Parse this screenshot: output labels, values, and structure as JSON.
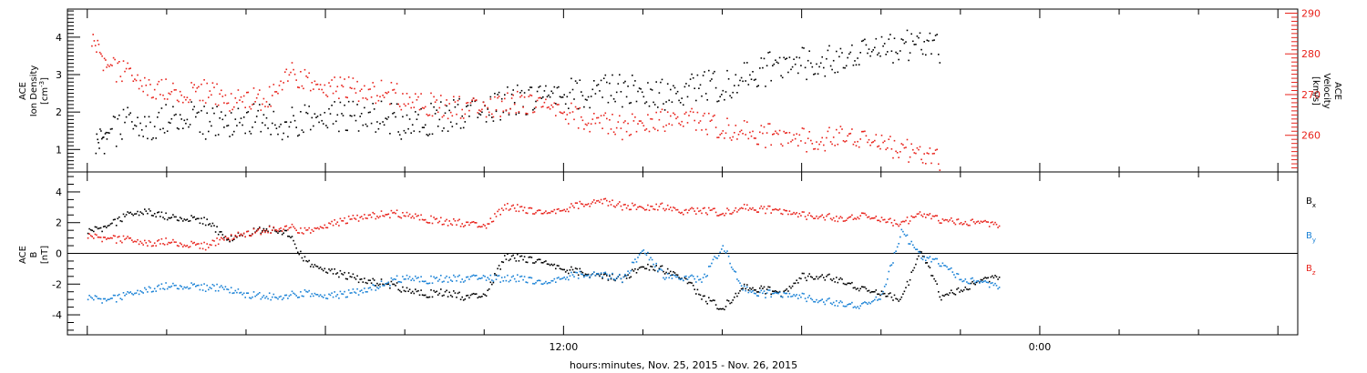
{
  "chart_data": [
    {
      "panel": "top",
      "type": "scatter",
      "left_axis": {
        "label_line1": "ACE",
        "label_line2": "Ion Density",
        "units": "[cm",
        "units_sup": "-3",
        "units_end": "]",
        "ylim": [
          0.4,
          4.75
        ],
        "ticks": [
          {
            "v": 1,
            "label": "1"
          },
          {
            "v": 2,
            "label": "2"
          },
          {
            "v": 3,
            "label": "3"
          },
          {
            "v": 4,
            "label": "4"
          }
        ],
        "color": "#000000"
      },
      "right_axis": {
        "label_line1": "ACE",
        "label_line2": "Velocity",
        "units": "[km/s]",
        "ylim": [
          251,
          291
        ],
        "ticks": [
          {
            "v": 260,
            "label": "260"
          },
          {
            "v": 270,
            "label": "270"
          },
          {
            "v": 280,
            "label": "280"
          },
          {
            "v": 290,
            "label": "290"
          }
        ],
        "color": "#e8221b"
      },
      "series": [
        {
          "axis": "left",
          "color": "#000000",
          "points": [
            [
              0.2,
              1.2
            ],
            [
              0.5,
              1.4
            ],
            [
              1.0,
              1.7
            ],
            [
              1.5,
              1.6
            ],
            [
              2.0,
              1.8
            ],
            [
              2.5,
              1.9
            ],
            [
              3.0,
              1.7
            ],
            [
              3.5,
              1.8
            ],
            [
              4.0,
              1.9
            ],
            [
              4.5,
              1.8
            ],
            [
              5.0,
              1.7
            ],
            [
              5.5,
              1.9
            ],
            [
              6.0,
              1.8
            ],
            [
              6.5,
              1.9
            ],
            [
              7.0,
              1.8
            ],
            [
              7.5,
              1.9
            ],
            [
              8.0,
              1.7
            ],
            [
              8.5,
              1.8
            ],
            [
              9.0,
              1.9
            ],
            [
              9.5,
              2.0
            ],
            [
              10.0,
              2.1
            ],
            [
              10.5,
              2.3
            ],
            [
              11.0,
              2.3
            ],
            [
              11.5,
              2.4
            ],
            [
              12.0,
              2.5
            ],
            [
              12.5,
              2.5
            ],
            [
              13.0,
              2.6
            ],
            [
              13.5,
              2.6
            ],
            [
              14.0,
              2.5
            ],
            [
              14.5,
              2.5
            ],
            [
              15.0,
              2.6
            ],
            [
              15.5,
              2.7
            ],
            [
              16.0,
              2.7
            ],
            [
              16.5,
              2.9
            ],
            [
              17.0,
              3.1
            ],
            [
              17.5,
              3.3
            ],
            [
              18.0,
              3.3
            ],
            [
              18.5,
              3.4
            ],
            [
              19.0,
              3.5
            ],
            [
              19.5,
              3.6
            ],
            [
              20.0,
              3.7
            ],
            [
              20.5,
              3.8
            ],
            [
              21.0,
              3.8
            ],
            [
              21.5,
              3.7
            ]
          ]
        },
        {
          "axis": "right",
          "color": "#e8221b",
          "points": [
            [
              0.1,
              284
            ],
            [
              0.5,
              277
            ],
            [
              1.0,
              275
            ],
            [
              1.5,
              272
            ],
            [
              2.0,
              271
            ],
            [
              2.5,
              270
            ],
            [
              3.0,
              271
            ],
            [
              3.5,
              269
            ],
            [
              4.0,
              270
            ],
            [
              4.5,
              268
            ],
            [
              5.0,
              276
            ],
            [
              5.5,
              274
            ],
            [
              6.0,
              271
            ],
            [
              6.5,
              272
            ],
            [
              7.0,
              270
            ],
            [
              7.5,
              271
            ],
            [
              8.0,
              269
            ],
            [
              8.5,
              268
            ],
            [
              9.0,
              267
            ],
            [
              9.5,
              267
            ],
            [
              10.0,
              267
            ],
            [
              10.5,
              268
            ],
            [
              11.0,
              268
            ],
            [
              11.5,
              267
            ],
            [
              12.0,
              266
            ],
            [
              12.5,
              264
            ],
            [
              13.0,
              263
            ],
            [
              13.5,
              262
            ],
            [
              14.0,
              263
            ],
            [
              14.5,
              264
            ],
            [
              15.0,
              265
            ],
            [
              15.5,
              263
            ],
            [
              16.0,
              262
            ],
            [
              16.5,
              261
            ],
            [
              17.0,
              260
            ],
            [
              17.5,
              260
            ],
            [
              18.0,
              259
            ],
            [
              18.5,
              259
            ],
            [
              19.0,
              261
            ],
            [
              19.5,
              259
            ],
            [
              20.0,
              258
            ],
            [
              20.5,
              257
            ],
            [
              21.0,
              255
            ],
            [
              21.5,
              254
            ]
          ]
        }
      ]
    },
    {
      "panel": "bottom",
      "type": "scatter",
      "left_axis": {
        "label_line1": "ACE",
        "label_line2": "B",
        "units": "[nT]",
        "ylim": [
          -5.3,
          5.3
        ],
        "ticks": [
          {
            "v": -4,
            "label": "-4"
          },
          {
            "v": -2,
            "label": "-2"
          },
          {
            "v": 0,
            "label": "0"
          },
          {
            "v": 2,
            "label": "2"
          },
          {
            "v": 4,
            "label": "4"
          }
        ],
        "zero_line": true
      },
      "series": [
        {
          "name": "B",
          "sub": "x",
          "color": "#000000",
          "points": [
            [
              0.0,
              1.5
            ],
            [
              0.5,
              1.8
            ],
            [
              1.0,
              2.5
            ],
            [
              1.5,
              2.8
            ],
            [
              2.0,
              2.4
            ],
            [
              2.5,
              2.3
            ],
            [
              3.0,
              2.1
            ],
            [
              3.5,
              1.0
            ],
            [
              4.0,
              1.4
            ],
            [
              4.5,
              1.6
            ],
            [
              5.0,
              1.5
            ],
            [
              5.5,
              -0.5
            ],
            [
              6.0,
              -1.1
            ],
            [
              6.5,
              -1.4
            ],
            [
              7.0,
              -1.8
            ],
            [
              7.5,
              -1.9
            ],
            [
              8.0,
              -2.3
            ],
            [
              8.5,
              -2.6
            ],
            [
              9.0,
              -2.5
            ],
            [
              9.5,
              -2.8
            ],
            [
              10.0,
              -2.7
            ],
            [
              10.5,
              -0.2
            ],
            [
              11.0,
              -0.3
            ],
            [
              11.5,
              -0.6
            ],
            [
              12.0,
              -1.0
            ],
            [
              12.5,
              -1.2
            ],
            [
              13.0,
              -1.5
            ],
            [
              13.5,
              -1.6
            ],
            [
              14.0,
              -0.8
            ],
            [
              14.5,
              -1.0
            ],
            [
              15.0,
              -1.5
            ],
            [
              15.5,
              -2.9
            ],
            [
              16.0,
              -3.5
            ],
            [
              16.5,
              -2.2
            ],
            [
              17.0,
              -2.3
            ],
            [
              17.5,
              -2.6
            ],
            [
              18.0,
              -1.5
            ],
            [
              18.5,
              -1.4
            ],
            [
              19.0,
              -1.7
            ],
            [
              19.5,
              -2.3
            ],
            [
              20.0,
              -2.6
            ],
            [
              20.5,
              -2.9
            ],
            [
              21.0,
              0.2
            ],
            [
              21.5,
              -2.8
            ],
            [
              22.0,
              -2.3
            ],
            [
              22.5,
              -1.8
            ],
            [
              23.0,
              -1.4
            ]
          ]
        },
        {
          "name": "B",
          "sub": "y",
          "color": "#1a82d6",
          "points": [
            [
              0.0,
              -2.8
            ],
            [
              0.5,
              -3.0
            ],
            [
              1.0,
              -2.7
            ],
            [
              1.5,
              -2.3
            ],
            [
              2.0,
              -2.1
            ],
            [
              2.5,
              -2.1
            ],
            [
              3.0,
              -2.2
            ],
            [
              3.5,
              -2.2
            ],
            [
              4.0,
              -2.6
            ],
            [
              4.5,
              -2.8
            ],
            [
              5.0,
              -2.7
            ],
            [
              5.5,
              -2.5
            ],
            [
              6.0,
              -2.8
            ],
            [
              6.5,
              -2.6
            ],
            [
              7.0,
              -2.4
            ],
            [
              7.5,
              -1.9
            ],
            [
              8.0,
              -1.5
            ],
            [
              8.5,
              -1.7
            ],
            [
              9.0,
              -1.6
            ],
            [
              9.5,
              -1.6
            ],
            [
              10.0,
              -1.5
            ],
            [
              10.5,
              -1.6
            ],
            [
              11.0,
              -1.6
            ],
            [
              11.5,
              -2.0
            ],
            [
              12.0,
              -1.5
            ],
            [
              12.5,
              -1.3
            ],
            [
              13.0,
              -1.4
            ],
            [
              13.5,
              -1.6
            ],
            [
              14.0,
              0.3
            ],
            [
              14.5,
              -1.4
            ],
            [
              15.0,
              -1.5
            ],
            [
              15.5,
              -1.7
            ],
            [
              16.0,
              0.6
            ],
            [
              16.5,
              -2.3
            ],
            [
              17.0,
              -2.6
            ],
            [
              17.5,
              -2.6
            ],
            [
              18.0,
              -2.8
            ],
            [
              18.5,
              -3.0
            ],
            [
              19.0,
              -3.2
            ],
            [
              19.5,
              -3.4
            ],
            [
              20.0,
              -2.8
            ],
            [
              20.5,
              1.5
            ],
            [
              21.0,
              -0.2
            ],
            [
              21.5,
              -0.6
            ],
            [
              22.0,
              -1.6
            ],
            [
              22.5,
              -1.9
            ],
            [
              23.0,
              -2.1
            ]
          ]
        },
        {
          "name": "B",
          "sub": "z",
          "color": "#e8221b",
          "points": [
            [
              0.0,
              1.2
            ],
            [
              0.5,
              1.0
            ],
            [
              1.0,
              0.9
            ],
            [
              1.5,
              0.7
            ],
            [
              2.0,
              0.8
            ],
            [
              2.5,
              0.6
            ],
            [
              3.0,
              0.5
            ],
            [
              3.5,
              1.1
            ],
            [
              4.0,
              1.4
            ],
            [
              4.5,
              1.5
            ],
            [
              5.0,
              1.8
            ],
            [
              5.5,
              1.5
            ],
            [
              6.0,
              1.8
            ],
            [
              6.5,
              2.2
            ],
            [
              7.0,
              2.4
            ],
            [
              7.5,
              2.6
            ],
            [
              8.0,
              2.6
            ],
            [
              8.5,
              2.3
            ],
            [
              9.0,
              2.1
            ],
            [
              9.5,
              2.0
            ],
            [
              10.0,
              1.8
            ],
            [
              10.5,
              3.1
            ],
            [
              11.0,
              2.9
            ],
            [
              11.5,
              2.6
            ],
            [
              12.0,
              2.9
            ],
            [
              12.5,
              3.3
            ],
            [
              13.0,
              3.4
            ],
            [
              13.5,
              3.1
            ],
            [
              14.0,
              3.0
            ],
            [
              14.5,
              3.1
            ],
            [
              15.0,
              2.8
            ],
            [
              15.5,
              2.8
            ],
            [
              16.0,
              2.7
            ],
            [
              16.5,
              3.0
            ],
            [
              17.0,
              2.9
            ],
            [
              17.5,
              2.8
            ],
            [
              18.0,
              2.5
            ],
            [
              18.5,
              2.5
            ],
            [
              19.0,
              2.3
            ],
            [
              19.5,
              2.5
            ],
            [
              20.0,
              2.2
            ],
            [
              20.5,
              2.0
            ],
            [
              21.0,
              2.6
            ],
            [
              21.5,
              2.2
            ],
            [
              22.0,
              2.1
            ],
            [
              22.5,
              2.0
            ],
            [
              23.0,
              1.9
            ]
          ]
        }
      ],
      "legend": [
        {
          "text": "B",
          "sub": "x",
          "color": "#000000"
        },
        {
          "text": "B",
          "sub": "y",
          "color": "#1a82d6"
        },
        {
          "text": "B",
          "sub": "z",
          "color": "#e8221b"
        }
      ]
    }
  ],
  "x_axis": {
    "xlim": [
      -0.5,
      30.5
    ],
    "major_ticks": [
      0,
      6,
      12,
      18,
      24,
      30
    ],
    "labeled_ticks": [
      {
        "v": 12,
        "label": "12:00"
      },
      {
        "v": 24,
        "label": "0:00"
      }
    ],
    "minor_step": 2,
    "title": "hours:minutes, Nov. 25, 2015 - Nov. 26, 2015"
  }
}
